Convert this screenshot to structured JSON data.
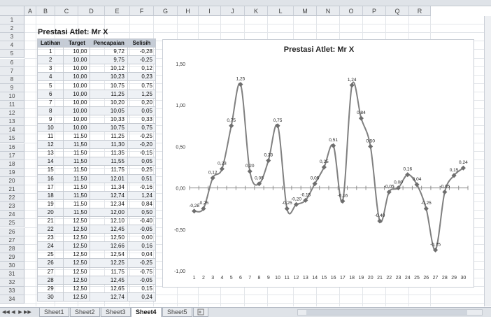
{
  "columns": [
    "A",
    "B",
    "C",
    "D",
    "E",
    "F",
    "G",
    "H",
    "I",
    "J",
    "K",
    "L",
    "M",
    "N",
    "O",
    "P",
    "Q",
    "R"
  ],
  "rows": [
    1,
    2,
    3,
    4,
    5,
    6,
    7,
    8,
    9,
    10,
    11,
    12,
    13,
    14,
    15,
    16,
    17,
    18,
    19,
    20,
    21,
    22,
    23,
    24,
    25,
    26,
    27,
    28,
    29,
    30,
    31,
    32,
    33,
    34
  ],
  "sheet_title": "Prestasi Atlet: Mr X",
  "table": {
    "headers": [
      "Latihan",
      "Target",
      "Pencapaian",
      "Selisih"
    ],
    "rows": [
      [
        "1",
        "10,00",
        "9,72",
        "-0,28"
      ],
      [
        "2",
        "10,00",
        "9,75",
        "-0,25"
      ],
      [
        "3",
        "10,00",
        "10,12",
        "0,12"
      ],
      [
        "4",
        "10,00",
        "10,23",
        "0,23"
      ],
      [
        "5",
        "10,00",
        "10,75",
        "0,75"
      ],
      [
        "6",
        "10,00",
        "11,25",
        "1,25"
      ],
      [
        "7",
        "10,00",
        "10,20",
        "0,20"
      ],
      [
        "8",
        "10,00",
        "10,05",
        "0,05"
      ],
      [
        "9",
        "10,00",
        "10,33",
        "0,33"
      ],
      [
        "10",
        "10,00",
        "10,75",
        "0,75"
      ],
      [
        "11",
        "11,50",
        "11,25",
        "-0,25"
      ],
      [
        "12",
        "11,50",
        "11,30",
        "-0,20"
      ],
      [
        "13",
        "11,50",
        "11,35",
        "-0,15"
      ],
      [
        "14",
        "11,50",
        "11,55",
        "0,05"
      ],
      [
        "15",
        "11,50",
        "11,75",
        "0,25"
      ],
      [
        "16",
        "11,50",
        "12,01",
        "0,51"
      ],
      [
        "17",
        "11,50",
        "11,34",
        "-0,16"
      ],
      [
        "18",
        "11,50",
        "12,74",
        "1,24"
      ],
      [
        "19",
        "11,50",
        "12,34",
        "0,84"
      ],
      [
        "20",
        "11,50",
        "12,00",
        "0,50"
      ],
      [
        "21",
        "12,50",
        "12,10",
        "-0,40"
      ],
      [
        "22",
        "12,50",
        "12,45",
        "-0,05"
      ],
      [
        "23",
        "12,50",
        "12,50",
        "0,00"
      ],
      [
        "24",
        "12,50",
        "12,66",
        "0,16"
      ],
      [
        "25",
        "12,50",
        "12,54",
        "0,04"
      ],
      [
        "26",
        "12,50",
        "12,25",
        "-0,25"
      ],
      [
        "27",
        "12,50",
        "11,75",
        "-0,75"
      ],
      [
        "28",
        "12,50",
        "12,45",
        "-0,05"
      ],
      [
        "29",
        "12,50",
        "12,65",
        "0,15"
      ],
      [
        "30",
        "12,50",
        "12,74",
        "0,24"
      ]
    ]
  },
  "chart_data": {
    "type": "line",
    "title": "Prestasi Atlet: Mr X",
    "x": [
      1,
      2,
      3,
      4,
      5,
      6,
      7,
      8,
      9,
      10,
      11,
      12,
      13,
      14,
      15,
      16,
      17,
      18,
      19,
      20,
      21,
      22,
      23,
      24,
      25,
      26,
      27,
      28,
      29,
      30
    ],
    "values": [
      -0.28,
      -0.25,
      0.12,
      0.23,
      0.75,
      1.25,
      0.2,
      0.05,
      0.33,
      0.75,
      -0.25,
      -0.2,
      -0.15,
      0.05,
      0.25,
      0.51,
      -0.16,
      1.24,
      0.84,
      0.5,
      -0.4,
      -0.05,
      0.0,
      0.16,
      0.04,
      -0.25,
      -0.75,
      -0.05,
      0.15,
      0.24
    ],
    "data_labels": [
      "-0,28",
      "-0,25",
      "0,12",
      "0,23",
      "0,75",
      "1,25",
      "0,20",
      "0,05",
      "0,33",
      "0,75",
      "-0,25",
      "-0,20",
      "-0,15",
      "0,05",
      "0,25",
      "0,51",
      "-0,16",
      "1,24",
      "0,84",
      "0,50",
      "-0,40",
      "-0,05",
      "0,00",
      "0,16",
      "0,04",
      "-0,25",
      "-0,75",
      "-0,05",
      "0,15",
      "0,24"
    ],
    "y_ticks": [
      -1.0,
      -0.5,
      0.0,
      0.5,
      1.0,
      1.5
    ],
    "y_tick_labels": [
      "-1,00",
      "-0,50",
      "0,00",
      "0,50",
      "1,00",
      "1,50"
    ],
    "x_tick_labels": [
      "1",
      "2",
      "3",
      "4",
      "5",
      "6",
      "7",
      "8",
      "9",
      "10",
      "11",
      "12",
      "13",
      "14",
      "15",
      "16",
      "17",
      "18",
      "19",
      "20",
      "21",
      "22",
      "23",
      "24",
      "25",
      "26",
      "27",
      "28",
      "29",
      "30"
    ],
    "ylim": [
      -1.0,
      1.5
    ],
    "smooth": true,
    "grid": false,
    "legend": "none",
    "line_color": "#808080"
  },
  "tabs": [
    "Sheet1",
    "Sheet2",
    "Sheet3",
    "Sheet4",
    "Sheet5"
  ],
  "active_tab": "Sheet4",
  "nav_glyphs": [
    "◀◀",
    "◀",
    "▶",
    "▶▶"
  ]
}
